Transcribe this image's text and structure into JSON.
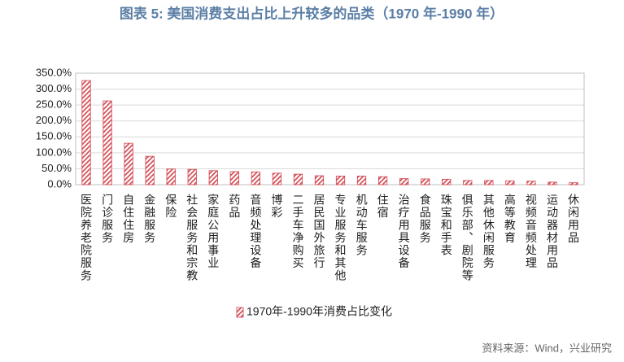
{
  "chart_data": {
    "type": "bar",
    "title": "图表 5:  美国消费支出占比上升较多的品类（1970 年-1990 年）",
    "source": "资料来源：Wind，兴业研究",
    "categories": [
      "医院养老院服务",
      "门诊服务",
      "自住住房",
      "金融服务",
      "保险",
      "社会服务和宗教",
      "家庭公用事业",
      "药品",
      "音频处理设备",
      "博彩",
      "二手车净购买",
      "居民国外旅行",
      "专业服务和其他",
      "机动车服务",
      "住宿",
      "治疗用具设备",
      "食品服务",
      "珠宝和手表",
      "俱乐部、剧院等",
      "其他休闲服务",
      "高等教育",
      "视频音频处理",
      "运动器材用品",
      "休闲用品"
    ],
    "series": [
      {
        "name": "1970年-1990年消费占比变化",
        "color": "#d0404a",
        "values": [
          327,
          263,
          130,
          89,
          49,
          48,
          44,
          41,
          40,
          36,
          33,
          28,
          27,
          27,
          25,
          19,
          18,
          17,
          13,
          13,
          12,
          11,
          8,
          6
        ]
      }
    ],
    "ylim": [
      0,
      350
    ],
    "yticks": [
      {
        "value": 0,
        "label": "0.0%"
      },
      {
        "value": 50,
        "label": "50.0%"
      },
      {
        "value": 100,
        "label": "100.0%"
      },
      {
        "value": 150,
        "label": "150.0%"
      },
      {
        "value": 200,
        "label": "200.0%"
      },
      {
        "value": 250,
        "label": "250.0%"
      },
      {
        "value": 300,
        "label": "300.0%"
      },
      {
        "value": 350,
        "label": "350.0%"
      }
    ],
    "grid": true
  }
}
